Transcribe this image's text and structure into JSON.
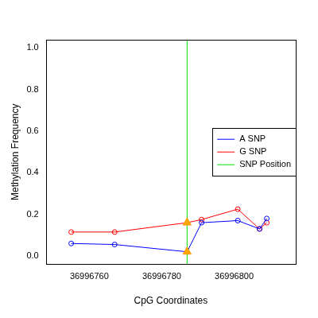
{
  "chart_data": {
    "type": "line",
    "x_label": "CpG Coordinates",
    "y_label": "Methylation Frequency",
    "x": [
      36996755,
      36996767,
      36996787,
      36996791,
      36996801,
      36996807,
      36996809
    ],
    "series": [
      {
        "name": "A SNP",
        "color": "#0000ff",
        "marker": "circle",
        "values": [
          0.06,
          0.055,
          0.02,
          0.16,
          0.17,
          0.13,
          0.18
        ]
      },
      {
        "name": "G SNP",
        "color": "#ff0000",
        "marker": "circle",
        "values": [
          0.115,
          0.115,
          0.16,
          0.175,
          0.225,
          0.13,
          0.16
        ]
      }
    ],
    "vlines": [
      {
        "name": "SNP Position",
        "x": 36996787,
        "color": "#00dd00"
      }
    ],
    "xlim": [
      36996748,
      36996817
    ],
    "xticks": [
      36996760,
      36996780,
      36996800
    ],
    "ylim": [
      -0.04,
      1.04
    ],
    "yticks": [
      {
        "value": 0,
        "label": "0.0"
      },
      {
        "value": 0.2,
        "label": "0.2"
      },
      {
        "value": 0.4,
        "label": "0.4"
      },
      {
        "value": 0.6,
        "label": "0.6"
      },
      {
        "value": 0.8,
        "label": "0.8"
      },
      {
        "value": 1,
        "label": "1.0"
      }
    ],
    "grid": false,
    "legend": "right"
  }
}
